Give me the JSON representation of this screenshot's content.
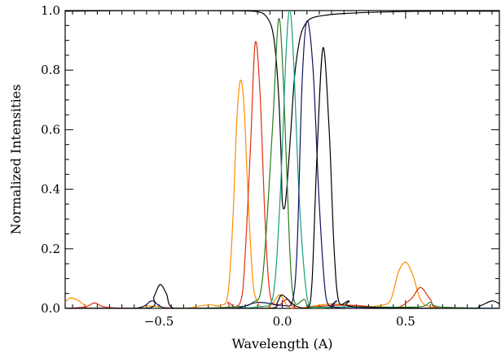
{
  "chart_data": {
    "type": "line",
    "title": "",
    "xlabel": "Wavelength (A)",
    "ylabel": "Normalized Intensities",
    "xlim": [
      -0.88,
      0.88
    ],
    "ylim": [
      0.0,
      1.0
    ],
    "grid": false,
    "legend": "none",
    "x_ticks": [
      -0.5,
      0.0,
      0.5
    ],
    "x_tick_labels": [
      "−0.5",
      "0.0",
      "0.5"
    ],
    "y_ticks": [
      0.0,
      0.2,
      0.4,
      0.6,
      0.8,
      1.0
    ],
    "y_tick_labels": [
      "0.0",
      "0.2",
      "0.4",
      "0.6",
      "0.8",
      "1.0"
    ],
    "series": [
      {
        "color": "#000000",
        "kind": "line_profile",
        "points": [
          [
            -0.88,
            0.998
          ],
          [
            -0.6,
            1.0
          ],
          [
            -0.3,
            1.0
          ],
          [
            -0.15,
            0.999
          ],
          [
            -0.1,
            0.996
          ],
          [
            -0.07,
            0.985
          ],
          [
            -0.045,
            0.95
          ],
          [
            -0.03,
            0.88
          ],
          [
            -0.015,
            0.72
          ],
          [
            -0.005,
            0.52
          ],
          [
            0.0,
            0.36
          ],
          [
            0.01,
            0.34
          ],
          [
            0.02,
            0.42
          ],
          [
            0.035,
            0.6
          ],
          [
            0.05,
            0.78
          ],
          [
            0.07,
            0.9
          ],
          [
            0.09,
            0.95
          ],
          [
            0.12,
            0.975
          ],
          [
            0.18,
            0.985
          ],
          [
            0.25,
            0.99
          ],
          [
            0.4,
            0.995
          ],
          [
            0.6,
            0.998
          ],
          [
            0.88,
            0.998
          ]
        ]
      },
      {
        "color": "#ff8c00",
        "kind": "filter",
        "points": [
          [
            -0.88,
            0.02
          ],
          [
            -0.86,
            0.035
          ],
          [
            -0.83,
            0.028
          ],
          [
            -0.8,
            0.01
          ],
          [
            -0.77,
            0.0
          ],
          [
            -0.6,
            0.0
          ],
          [
            -0.55,
            0.008
          ],
          [
            -0.5,
            0.005
          ],
          [
            -0.4,
            0.0
          ],
          [
            -0.3,
            0.012
          ],
          [
            -0.25,
            0.01
          ],
          [
            -0.22,
            0.05
          ],
          [
            -0.2,
            0.3
          ],
          [
            -0.185,
            0.62
          ],
          [
            -0.17,
            0.765
          ],
          [
            -0.155,
            0.68
          ],
          [
            -0.14,
            0.4
          ],
          [
            -0.12,
            0.1
          ],
          [
            -0.1,
            0.02
          ],
          [
            -0.07,
            0.0
          ],
          [
            -0.04,
            0.015
          ],
          [
            -0.01,
            0.045
          ],
          [
            0.02,
            0.01
          ],
          [
            0.06,
            0.0
          ],
          [
            0.2,
            0.015
          ],
          [
            0.3,
            0.005
          ],
          [
            0.4,
            0.01
          ],
          [
            0.44,
            0.03
          ],
          [
            0.47,
            0.12
          ],
          [
            0.5,
            0.155
          ],
          [
            0.53,
            0.11
          ],
          [
            0.56,
            0.03
          ],
          [
            0.6,
            0.005
          ],
          [
            0.7,
            0.0
          ],
          [
            0.88,
            0.0
          ]
        ]
      },
      {
        "color": "#e03010",
        "kind": "filter",
        "points": [
          [
            -0.88,
            0.0
          ],
          [
            -0.8,
            0.005
          ],
          [
            -0.76,
            0.018
          ],
          [
            -0.72,
            0.005
          ],
          [
            -0.6,
            0.0
          ],
          [
            -0.25,
            0.0
          ],
          [
            -0.22,
            0.02
          ],
          [
            -0.19,
            0.005
          ],
          [
            -0.16,
            0.06
          ],
          [
            -0.13,
            0.52
          ],
          [
            -0.11,
            0.89
          ],
          [
            -0.09,
            0.72
          ],
          [
            -0.07,
            0.3
          ],
          [
            -0.05,
            0.05
          ],
          [
            -0.02,
            0.01
          ],
          [
            0.02,
            0.03
          ],
          [
            0.06,
            0.0
          ],
          [
            0.2,
            0.01
          ],
          [
            0.3,
            0.01
          ],
          [
            0.45,
            0.0
          ],
          [
            0.52,
            0.03
          ],
          [
            0.56,
            0.07
          ],
          [
            0.6,
            0.03
          ],
          [
            0.64,
            0.0
          ],
          [
            0.88,
            0.0
          ]
        ]
      },
      {
        "color": "#2a7a1a",
        "kind": "filter",
        "points": [
          [
            -0.88,
            0.0
          ],
          [
            -0.4,
            0.0
          ],
          [
            -0.2,
            0.005
          ],
          [
            -0.12,
            0.02
          ],
          [
            -0.08,
            0.1
          ],
          [
            -0.04,
            0.6
          ],
          [
            -0.015,
            0.97
          ],
          [
            0.005,
            0.75
          ],
          [
            0.03,
            0.2
          ],
          [
            0.05,
            0.02
          ],
          [
            0.09,
            0.03
          ],
          [
            0.12,
            0.005
          ],
          [
            0.3,
            0.005
          ],
          [
            0.55,
            0.005
          ],
          [
            0.6,
            0.02
          ],
          [
            0.64,
            0.005
          ],
          [
            0.88,
            0.0
          ]
        ]
      },
      {
        "color": "#14a080",
        "kind": "filter",
        "points": [
          [
            -0.88,
            0.0
          ],
          [
            -0.3,
            0.0
          ],
          [
            -0.1,
            0.005
          ],
          [
            -0.04,
            0.03
          ],
          [
            -0.01,
            0.35
          ],
          [
            0.015,
            0.85
          ],
          [
            0.03,
            1.0
          ],
          [
            0.045,
            0.85
          ],
          [
            0.07,
            0.35
          ],
          [
            0.1,
            0.04
          ],
          [
            0.13,
            0.0
          ],
          [
            0.25,
            0.005
          ],
          [
            0.5,
            0.0
          ],
          [
            0.88,
            0.0
          ]
        ]
      },
      {
        "color": "#101060",
        "kind": "filter",
        "points": [
          [
            -0.88,
            0.0
          ],
          [
            -0.6,
            0.0
          ],
          [
            -0.53,
            0.025
          ],
          [
            -0.5,
            0.01
          ],
          [
            -0.45,
            0.0
          ],
          [
            -0.2,
            0.0
          ],
          [
            -0.1,
            0.02
          ],
          [
            0.0,
            0.01
          ],
          [
            0.04,
            0.02
          ],
          [
            0.06,
            0.2
          ],
          [
            0.08,
            0.75
          ],
          [
            0.1,
            0.965
          ],
          [
            0.125,
            0.8
          ],
          [
            0.15,
            0.35
          ],
          [
            0.175,
            0.05
          ],
          [
            0.2,
            0.005
          ],
          [
            0.22,
            0.025
          ],
          [
            0.26,
            0.0
          ],
          [
            0.88,
            0.0
          ]
        ]
      },
      {
        "color": "#000000",
        "kind": "filter",
        "points": [
          [
            -0.88,
            0.0
          ],
          [
            -0.55,
            0.0
          ],
          [
            -0.52,
            0.04
          ],
          [
            -0.495,
            0.08
          ],
          [
            -0.47,
            0.05
          ],
          [
            -0.44,
            0.0
          ],
          [
            -0.3,
            0.0
          ],
          [
            -0.05,
            0.0
          ],
          [
            -0.02,
            0.02
          ],
          [
            0.0,
            0.045
          ],
          [
            0.05,
            0.01
          ],
          [
            0.1,
            0.0
          ],
          [
            0.12,
            0.08
          ],
          [
            0.14,
            0.5
          ],
          [
            0.165,
            0.875
          ],
          [
            0.19,
            0.6
          ],
          [
            0.21,
            0.2
          ],
          [
            0.23,
            0.02
          ],
          [
            0.27,
            0.025
          ],
          [
            0.3,
            0.005
          ],
          [
            0.75,
            0.0
          ],
          [
            0.8,
            0.008
          ],
          [
            0.85,
            0.025
          ],
          [
            0.88,
            0.015
          ]
        ]
      }
    ]
  }
}
